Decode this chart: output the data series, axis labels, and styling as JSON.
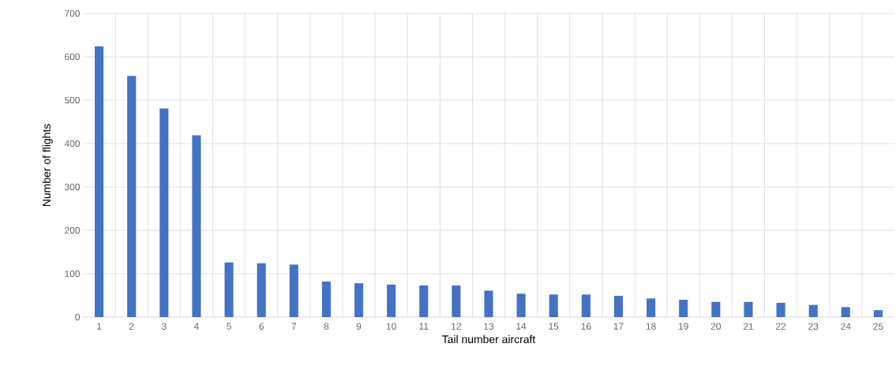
{
  "chart_data": {
    "type": "bar",
    "xlabel": "Tail number aircraft",
    "ylabel": "Number of flights",
    "categories": [
      "1",
      "2",
      "3",
      "4",
      "5",
      "6",
      "7",
      "8",
      "9",
      "10",
      "11",
      "12",
      "13",
      "14",
      "15",
      "16",
      "17",
      "18",
      "19",
      "20",
      "21",
      "22",
      "23",
      "24",
      "25"
    ],
    "values": [
      624,
      556,
      481,
      419,
      126,
      124,
      121,
      82,
      78,
      75,
      73,
      73,
      61,
      54,
      52,
      52,
      49,
      43,
      40,
      35,
      35,
      33,
      28,
      23,
      16
    ],
    "color": "#4472c4",
    "ylim": [
      0,
      700
    ],
    "yticks": [
      0,
      100,
      200,
      300,
      400,
      500,
      600,
      700
    ],
    "grid": true
  }
}
